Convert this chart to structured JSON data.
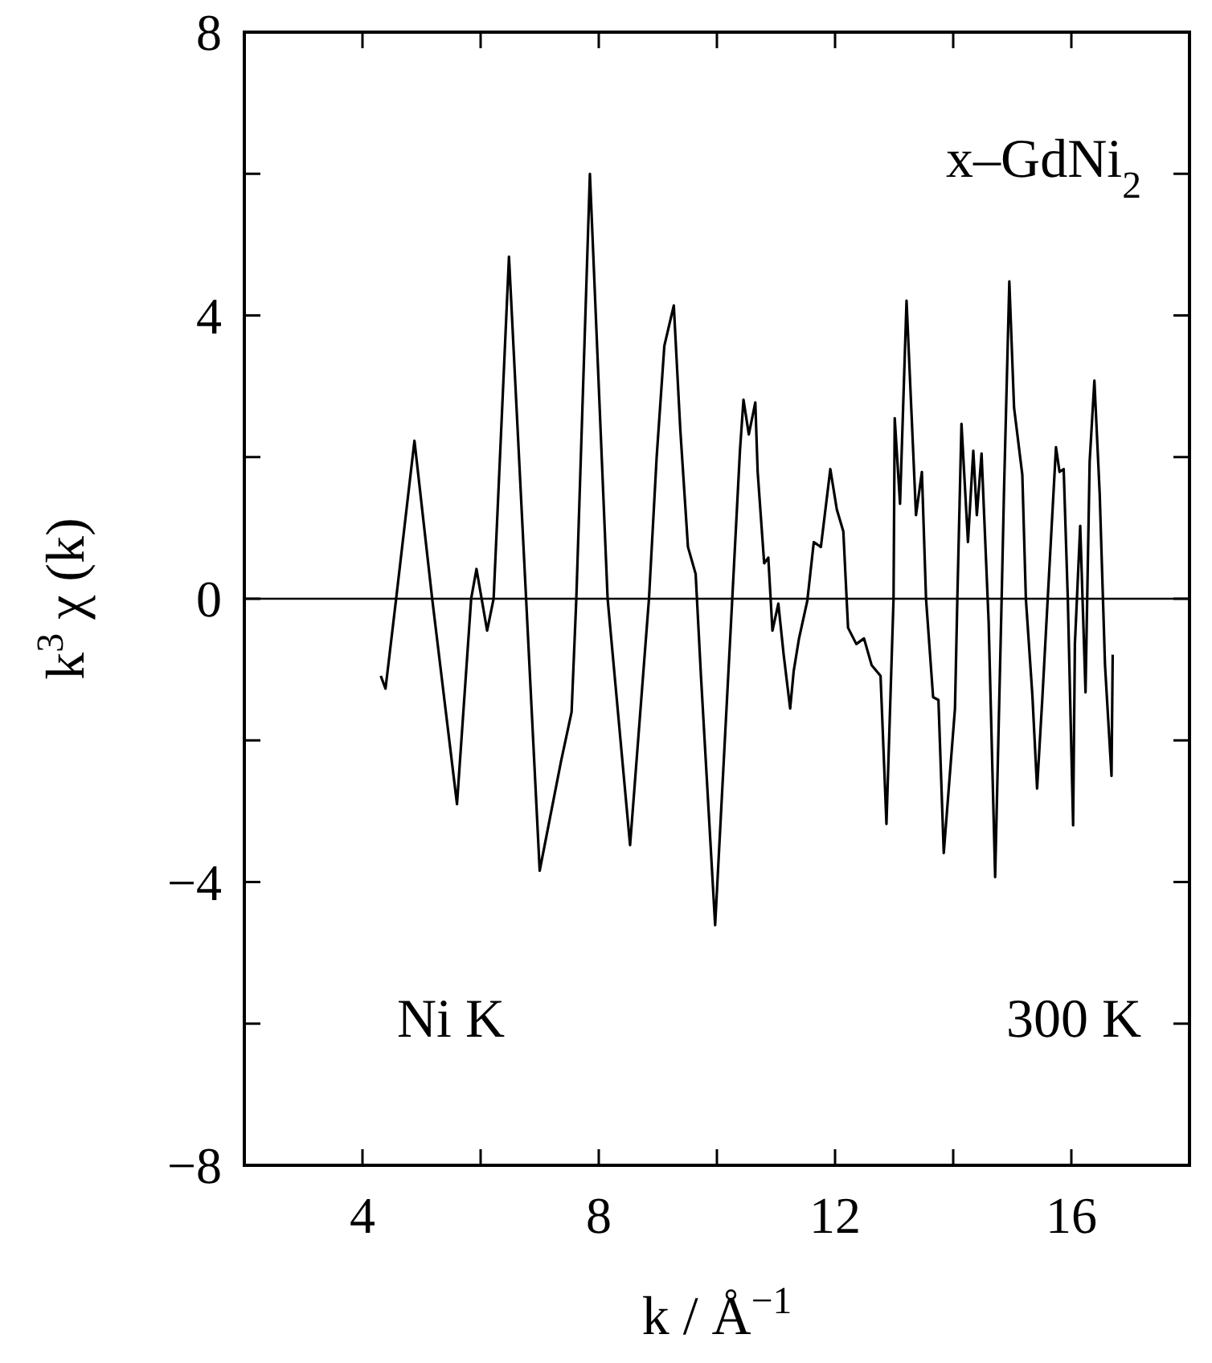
{
  "chart_data": {
    "type": "line",
    "xlabel": "k / Å$^{−1}$",
    "ylabel": "k$^{3}$ χ (k)",
    "xlim": [
      2,
      18
    ],
    "ylim": [
      -8,
      8
    ],
    "xticks": [
      4,
      {
        "value": 6,
        "label": null
      },
      8,
      {
        "value": 10,
        "label": null
      },
      12,
      {
        "value": 14,
        "label": null
      },
      16
    ],
    "yticks": [
      -8,
      {
        "value": -6,
        "label": null
      },
      -4,
      {
        "value": -2,
        "label": null
      },
      0,
      {
        "value": 2,
        "label": null
      },
      4,
      {
        "value": 6,
        "label": null
      },
      8
    ],
    "grid": false,
    "marker": "none",
    "line_style": "solid",
    "ref_lines": [
      {
        "axis": "y",
        "value": 0,
        "color": "#000000",
        "line_style": "solid"
      }
    ],
    "annotations": [
      "x–GdNi$_{2}$",
      "Ni K",
      "300 K"
    ],
    "series": [
      {
        "color": "#000000",
        "x": [
          4.31,
          4.39,
          4.57,
          4.88,
          5.18,
          5.6,
          5.84,
          5.93,
          6.11,
          6.22,
          6.48,
          6.77,
          7.0,
          7.36,
          7.54,
          7.62,
          7.85,
          8.15,
          8.53,
          8.85,
          8.98,
          9.11,
          9.27,
          9.38,
          9.51,
          9.64,
          9.73,
          9.97,
          10.26,
          10.39,
          10.45,
          10.54,
          10.65,
          10.69,
          10.8,
          10.87,
          10.94,
          11.04,
          11.13,
          11.24,
          11.3,
          11.39,
          11.53,
          11.64,
          11.76,
          11.92,
          12.03,
          12.14,
          12.22,
          12.36,
          12.49,
          12.62,
          12.77,
          12.87,
          12.99,
          13.01,
          13.1,
          13.21,
          13.37,
          13.47,
          13.54,
          13.66,
          13.75,
          13.84,
          14.03,
          14.07,
          14.14,
          14.25,
          14.34,
          14.4,
          14.48,
          14.6,
          14.71,
          14.82,
          14.86,
          14.95,
          15.03,
          15.17,
          15.23,
          15.34,
          15.42,
          15.51,
          15.6,
          15.74,
          15.8,
          15.87,
          15.94,
          16.03,
          16.06,
          16.15,
          16.24,
          16.31,
          16.39,
          16.48,
          16.57,
          16.68,
          16.7
        ],
        "values": [
          -1.09,
          -1.27,
          0,
          2.23,
          0,
          -2.9,
          0,
          0.42,
          -0.45,
          0,
          4.83,
          0,
          -3.84,
          -2.3,
          -1.6,
          0,
          6.0,
          0,
          -3.48,
          0,
          2.0,
          3.57,
          4.14,
          2.39,
          0.73,
          0.35,
          -1.09,
          -4.61,
          0,
          2.09,
          2.81,
          2.32,
          2.77,
          1.79,
          0.5,
          0.58,
          -0.45,
          -0.07,
          -0.79,
          -1.55,
          -1.02,
          -0.56,
          -0.03,
          0.8,
          0.73,
          1.83,
          1.26,
          0.95,
          -0.41,
          -0.64,
          -0.56,
          -0.94,
          -1.09,
          -3.18,
          0,
          2.55,
          1.34,
          4.21,
          1.18,
          1.79,
          0,
          -1.39,
          -1.43,
          -3.59,
          -1.55,
          0,
          2.47,
          0.8,
          2.09,
          1.18,
          2.05,
          -0.33,
          -3.93,
          0,
          1.52,
          4.48,
          2.7,
          1.75,
          0,
          -1.36,
          -2.68,
          -1.39,
          0,
          2.14,
          1.79,
          1.83,
          0,
          -3.2,
          -0.64,
          1.03,
          -1.32,
          1.94,
          3.08,
          1.48,
          -0.94,
          -2.5,
          -0.79
        ]
      }
    ]
  }
}
